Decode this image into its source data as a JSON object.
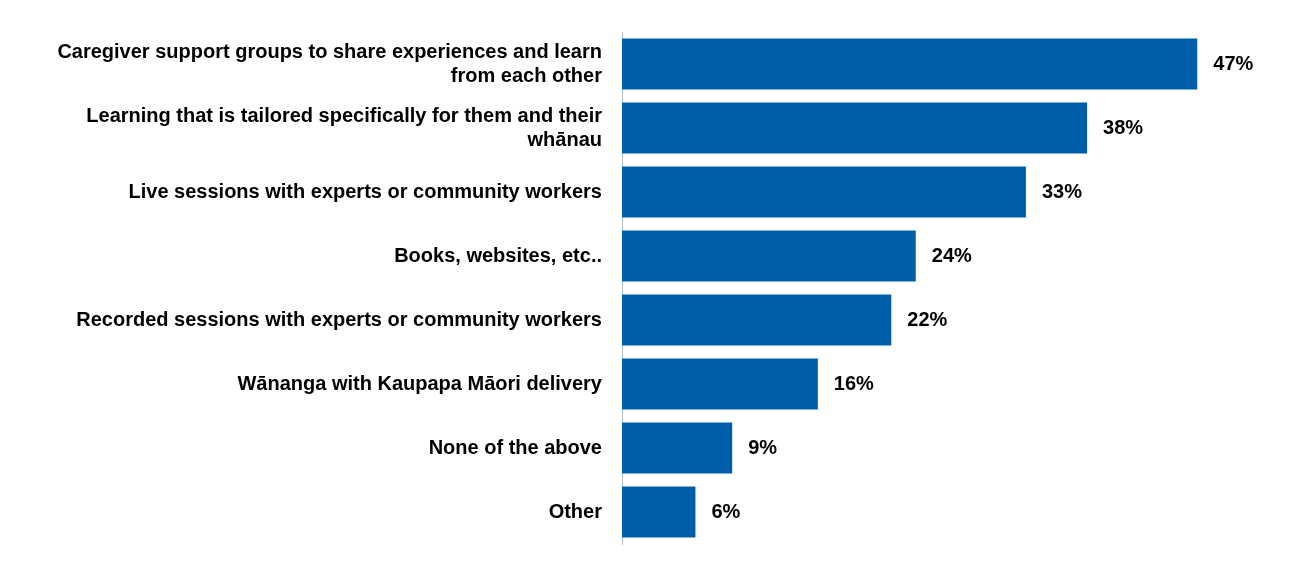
{
  "chart_data": {
    "type": "bar",
    "orientation": "horizontal",
    "categories": [
      "Caregiver support groups to share experiences and learn from each other",
      "Learning that is tailored specifically for them and their whānau",
      "Live sessions with experts or community workers",
      "Books, websites, etc..",
      "Recorded sessions with experts or community workers",
      "Wānanga with Kaupapa Māori delivery",
      "None of the above",
      "Other"
    ],
    "values": [
      47,
      38,
      33,
      24,
      22,
      16,
      9,
      6
    ],
    "value_labels": [
      "47%",
      "38%",
      "33%",
      "24%",
      "22%",
      "16%",
      "9%",
      "6%"
    ],
    "color": "#005daa",
    "tick_labels": "y"
  }
}
